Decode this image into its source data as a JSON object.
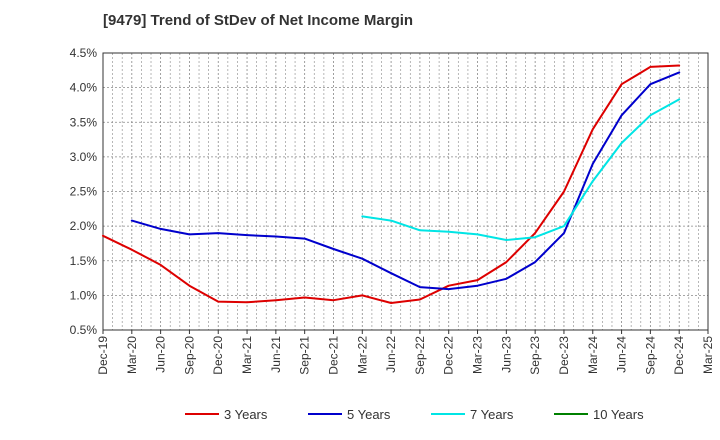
{
  "chart_data": {
    "type": "line",
    "title": "[9479]  Trend of StDev of Net Income Margin",
    "xlabel": "",
    "ylabel": "",
    "x_ticks": [
      "Dec-19",
      "Mar-20",
      "Jun-20",
      "Sep-20",
      "Dec-20",
      "Mar-21",
      "Jun-21",
      "Sep-21",
      "Dec-21",
      "Mar-22",
      "Jun-22",
      "Sep-22",
      "Dec-22",
      "Mar-23",
      "Jun-23",
      "Sep-23",
      "Dec-23",
      "Mar-24",
      "Jun-24",
      "Sep-24",
      "Dec-24",
      "Mar-25"
    ],
    "y_ticks": [
      "0.5%",
      "1.0%",
      "1.5%",
      "2.0%",
      "2.5%",
      "3.0%",
      "3.5%",
      "4.0%",
      "4.5%"
    ],
    "ylim": [
      0.5,
      4.5
    ],
    "grid": true,
    "legend_position": "bottom",
    "x": [
      "Dec-19",
      "Mar-20",
      "Jun-20",
      "Sep-20",
      "Dec-20",
      "Mar-21",
      "Jun-21",
      "Sep-21",
      "Dec-21",
      "Mar-22",
      "Jun-22",
      "Sep-22",
      "Dec-22",
      "Mar-23",
      "Jun-23",
      "Sep-23",
      "Dec-23",
      "Mar-24",
      "Jun-24",
      "Sep-24",
      "Dec-24"
    ],
    "series": [
      {
        "name": "3 Years",
        "color": "#dd0000",
        "values": [
          1.86,
          1.66,
          1.44,
          1.14,
          0.91,
          0.9,
          0.93,
          0.97,
          0.93,
          1.0,
          0.89,
          0.94,
          1.14,
          1.22,
          1.48,
          1.9,
          2.5,
          3.4,
          4.05,
          4.3,
          4.32
        ]
      },
      {
        "name": "5 Years",
        "color": "#0000cc",
        "values": [
          null,
          2.08,
          1.96,
          1.88,
          1.9,
          1.87,
          1.85,
          1.82,
          1.67,
          1.53,
          1.32,
          1.12,
          1.09,
          1.14,
          1.24,
          1.48,
          1.9,
          2.9,
          3.6,
          4.05,
          4.22
        ]
      },
      {
        "name": "7 Years",
        "color": "#00e5e5",
        "values": [
          null,
          null,
          null,
          null,
          null,
          null,
          null,
          null,
          null,
          2.14,
          2.08,
          1.94,
          1.92,
          1.88,
          1.8,
          1.84,
          2.0,
          2.65,
          3.2,
          3.6,
          3.83
        ]
      },
      {
        "name": "10 Years",
        "color": "#008000",
        "values": [
          null,
          null,
          null,
          null,
          null,
          null,
          null,
          null,
          null,
          null,
          null,
          null,
          null,
          null,
          null,
          null,
          null,
          null,
          null,
          null,
          null
        ]
      }
    ]
  }
}
